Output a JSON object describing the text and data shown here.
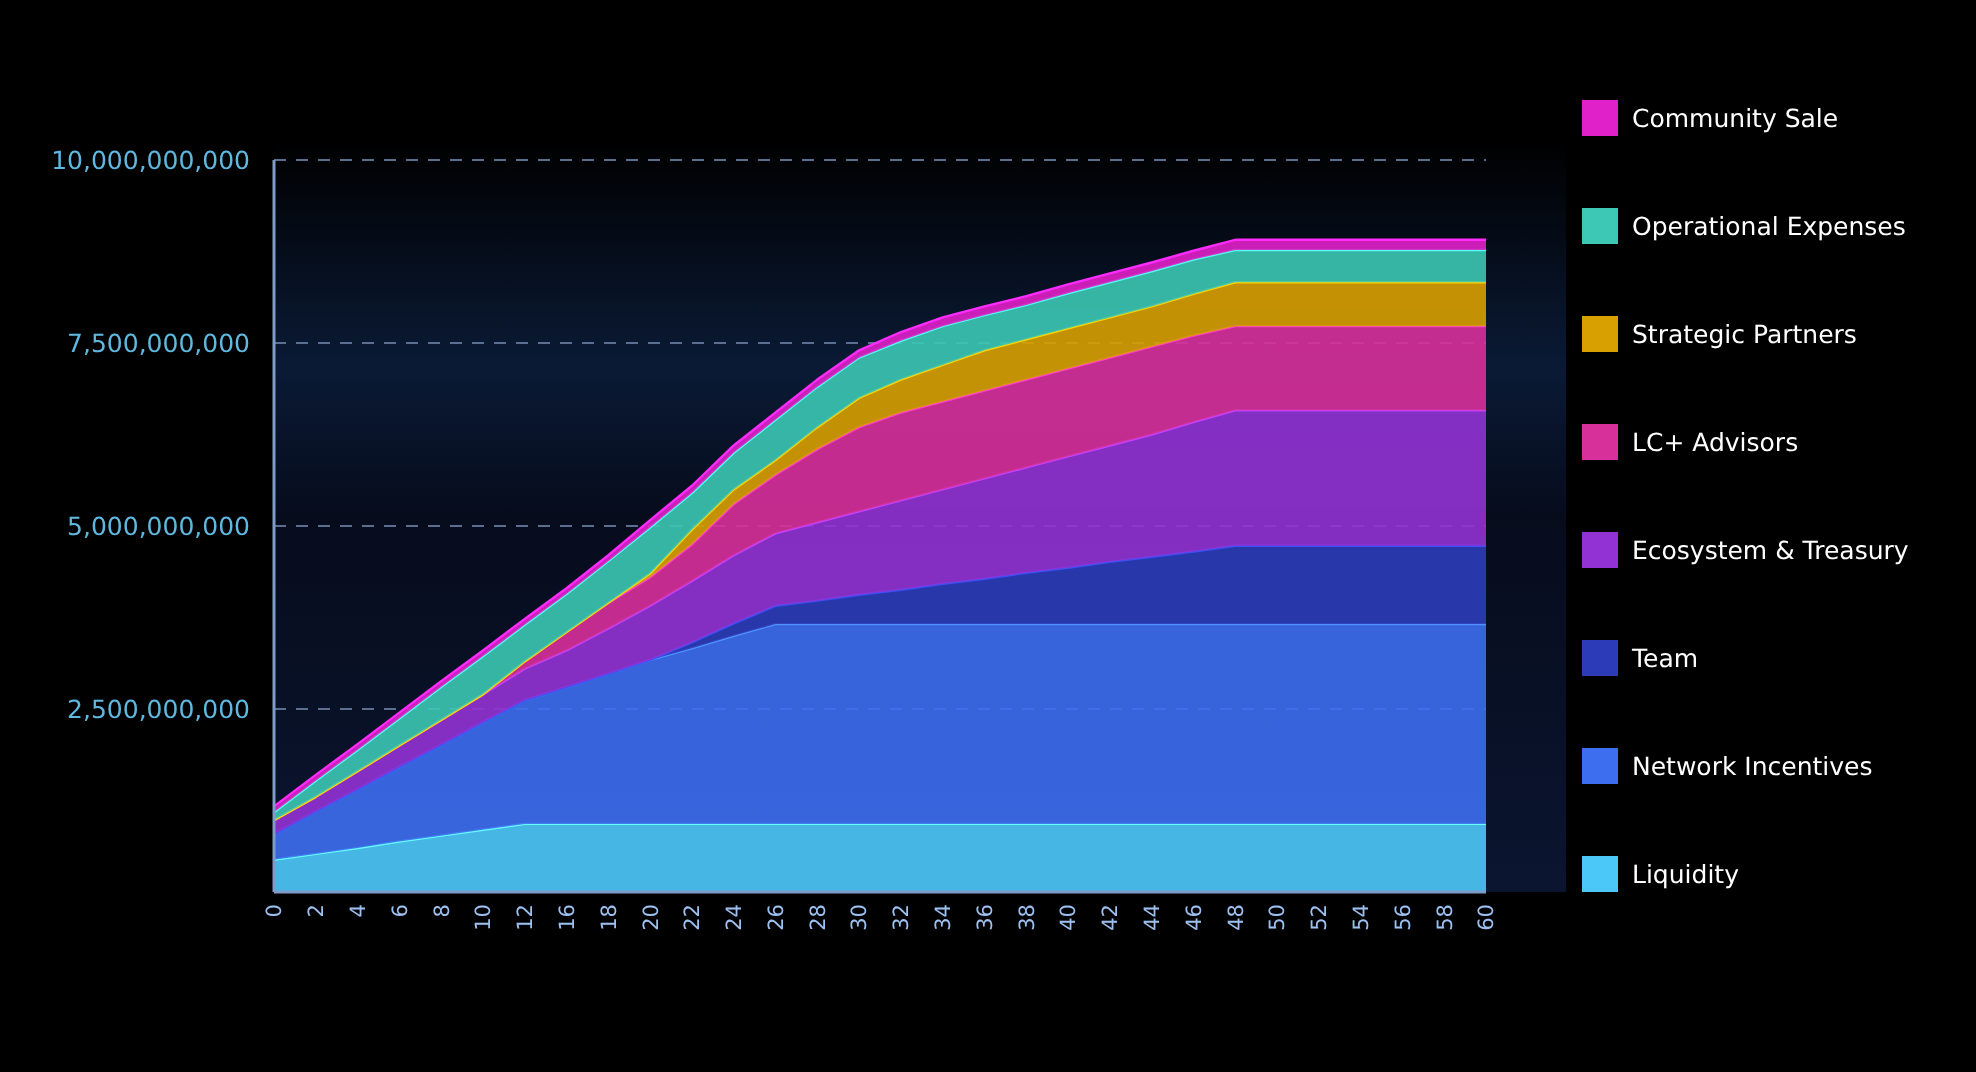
{
  "chart_data": {
    "type": "area",
    "stacked": true,
    "grid": "y",
    "legend": "right",
    "categories": [
      "0",
      "2",
      "4",
      "6",
      "8",
      "10",
      "12",
      "16",
      "18",
      "20",
      "22",
      "24",
      "26",
      "28",
      "30",
      "32",
      "34",
      "36",
      "38",
      "40",
      "42",
      "44",
      "46",
      "48",
      "50",
      "52",
      "54",
      "56",
      "58",
      "60"
    ],
    "ylim": [
      0,
      10000000000
    ],
    "yticks": [
      {
        "value": 2500000000,
        "label": "2,500,000,000"
      },
      {
        "value": 5000000000,
        "label": "5,000,000,000"
      },
      {
        "value": 7500000000,
        "label": "7,500,000,000"
      },
      {
        "value": 10000000000,
        "label": "10,000,000,000"
      }
    ],
    "series": [
      {
        "name": "Liquidity",
        "color": "#4cc8f8",
        "values": [
          440000000.0,
          520000000.0,
          600000000.0,
          690000000.0,
          770000000.0,
          850000000.0,
          930000000.0,
          930000000.0,
          930000000.0,
          930000000.0,
          930000000.0,
          930000000.0,
          930000000.0,
          930000000.0,
          930000000.0,
          930000000.0,
          930000000.0,
          930000000.0,
          930000000.0,
          930000000.0,
          930000000.0,
          930000000.0,
          930000000.0,
          930000000.0,
          930000000.0,
          930000000.0,
          930000000.0,
          930000000.0,
          930000000.0,
          930000000.0
        ]
      },
      {
        "name": "Network Incentives",
        "color": "#3d6ef0",
        "values": [
          350000000.0,
          580000000.0,
          800000000.0,
          1020000000.0,
          1240000000.0,
          1470000000.0,
          1690000000.0,
          1870000000.0,
          2050000000.0,
          2240000000.0,
          2400000000.0,
          2570000000.0,
          2730000000.0,
          2730000000.0,
          2730000000.0,
          2730000000.0,
          2730000000.0,
          2730000000.0,
          2730000000.0,
          2730000000.0,
          2730000000.0,
          2730000000.0,
          2730000000.0,
          2730000000.0,
          2730000000.0,
          2730000000.0,
          2730000000.0,
          2730000000.0,
          2730000000.0,
          2730000000.0
        ]
      },
      {
        "name": "Team",
        "color": "#2c3cb8",
        "values": [
          0,
          0,
          0,
          0,
          0,
          0,
          0,
          0,
          0,
          0,
          80000000.0,
          170000000.0,
          250000000.0,
          320000000.0,
          400000000.0,
          470000000.0,
          550000000.0,
          620000000.0,
          700000000.0,
          770000000.0,
          850000000.0,
          920000000.0,
          990000000.0,
          1070000000.0,
          1070000000.0,
          1070000000.0,
          1070000000.0,
          1070000000.0,
          1070000000.0,
          1070000000.0
        ]
      },
      {
        "name": "Ecosystem & Treasury",
        "color": "#9232d4",
        "values": [
          190000000.0,
          200000000.0,
          250000000.0,
          290000000.0,
          340000000.0,
          380000000.0,
          430000000.0,
          500000000.0,
          620000000.0,
          740000000.0,
          840000000.0,
          930000000.0,
          990000000.0,
          1070000000.0,
          1140000000.0,
          1220000000.0,
          1290000000.0,
          1370000000.0,
          1440000000.0,
          1520000000.0,
          1590000000.0,
          1670000000.0,
          1770000000.0,
          1850000000.0,
          1850000000.0,
          1850000000.0,
          1850000000.0,
          1850000000.0,
          1850000000.0,
          1850000000.0
        ]
      },
      {
        "name": "LC+ Advisors",
        "color": "#d8309a",
        "values": [
          0,
          0,
          0,
          0,
          0,
          0,
          100000000.0,
          250000000.0,
          350000000.0,
          390000000.0,
          500000000.0,
          700000000.0,
          800000000.0,
          1000000000.0,
          1150000000.0,
          1200000000.0,
          1200000000.0,
          1200000000.0,
          1200000000.0,
          1200000000.0,
          1200000000.0,
          1200000000.0,
          1180000000.0,
          1150000000.0,
          1150000000.0,
          1150000000.0,
          1150000000.0,
          1150000000.0,
          1150000000.0,
          1150000000.0
        ]
      },
      {
        "name": "Strategic Partners",
        "color": "#d8a000",
        "values": [
          0,
          0,
          0,
          0,
          0,
          0,
          0,
          0,
          0,
          50000000.0,
          200000000.0,
          200000000.0,
          200000000.0,
          300000000.0,
          400000000.0,
          450000000.0,
          500000000.0,
          550000000.0,
          550000000.0,
          550000000.0,
          550000000.0,
          550000000.0,
          570000000.0,
          600000000.0,
          600000000.0,
          600000000.0,
          600000000.0,
          600000000.0,
          600000000.0,
          600000000.0
        ]
      },
      {
        "name": "Operational Expenses",
        "color": "#3cc8b4",
        "values": [
          110000000.0,
          220000000.0,
          290000000.0,
          370000000.0,
          450000000.0,
          520000000.0,
          500000000.0,
          520000000.0,
          570000000.0,
          630000000.0,
          500000000.0,
          500000000.0,
          550000000.0,
          550000000.0,
          550000000.0,
          530000000.0,
          530000000.0,
          480000000.0,
          470000000.0,
          480000000.0,
          480000000.0,
          480000000.0,
          470000000.0,
          440000000.0,
          440000000.0,
          440000000.0,
          440000000.0,
          440000000.0,
          440000000.0,
          440000000.0
        ]
      },
      {
        "name": "Community Sale",
        "color": "#e020c8",
        "values": [
          80000000.0,
          80000000.0,
          80000000.0,
          80000000.0,
          80000000.0,
          80000000.0,
          80000000.0,
          80000000.0,
          80000000.0,
          100000000.0,
          100000000.0,
          100000000.0,
          100000000.0,
          100000000.0,
          100000000.0,
          120000000.0,
          120000000.0,
          120000000.0,
          120000000.0,
          120000000.0,
          120000000.0,
          120000000.0,
          120000000.0,
          140000000.0,
          140000000.0,
          140000000.0,
          140000000.0,
          140000000.0,
          140000000.0,
          140000000.0
        ]
      }
    ]
  }
}
